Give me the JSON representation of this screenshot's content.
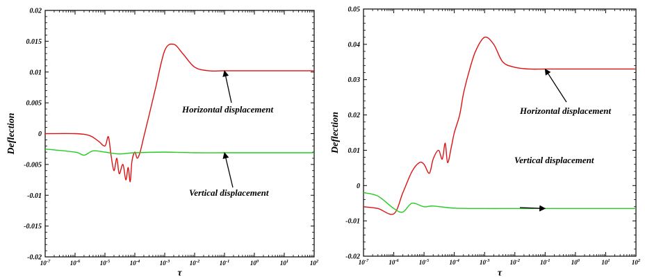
{
  "chart_data": [
    {
      "type": "line",
      "xscale": "log",
      "xlim": [
        "10^-7",
        "10^2"
      ],
      "x_ticks": [
        "10^-7",
        "10^-6",
        "10^-5",
        "10^-4",
        "10^-3",
        "10^-2",
        "10^-1",
        "10^0",
        "10^1",
        "10^2"
      ],
      "ylim": [
        -0.02,
        0.02
      ],
      "y_ticks": [
        "0.02",
        "0.015",
        "0.01",
        "0.005",
        "0",
        "-0.005",
        "-0.01",
        "-0.015",
        "-0.02"
      ],
      "xlabel": "τ",
      "ylabel": "Deflection",
      "colors": {
        "horizontal": "#dd1111",
        "vertical": "#22cc22"
      },
      "annotations": [
        {
          "text": "Horizontal displacement",
          "arrow_to": {
            "x": "10^-1",
            "y": 0.0102
          }
        },
        {
          "text": "Vertical displacement",
          "arrow_to": {
            "x": "10^-1",
            "y": -0.0031
          }
        }
      ],
      "series": [
        {
          "key": "horizontal",
          "x": [
            "10^-7",
            "10^-6",
            "3×10^-6",
            "6×10^-6",
            "10^-5",
            "1.3×10^-5",
            "1.6×10^-5",
            "2×10^-5",
            "2.5×10^-5",
            "3×10^-5",
            "4×10^-5",
            "5×10^-5",
            "6×10^-5",
            "7×10^-5",
            "8×10^-5",
            "10^-4",
            "1.2×10^-4",
            "1.5×10^-4",
            "2×10^-4",
            "3×10^-4",
            "5×10^-4",
            "10^-3",
            "2×10^-3",
            "4×10^-3",
            "10^-2",
            "3×10^-2",
            "10^-1",
            "10^0",
            "10^1",
            "10^2"
          ],
          "y": [
            0.0,
            0.0,
            -0.0003,
            -0.0012,
            -0.002,
            -0.0005,
            -0.0035,
            -0.006,
            -0.004,
            -0.0065,
            -0.005,
            -0.0075,
            -0.0055,
            -0.0078,
            -0.0045,
            -0.003,
            -0.004,
            -0.003,
            -0.0005,
            0.003,
            0.0075,
            0.0135,
            0.0145,
            0.013,
            0.0108,
            0.0102,
            0.0102,
            0.0102,
            0.0102,
            0.0102
          ]
        },
        {
          "key": "vertical",
          "x": [
            "10^-7",
            "10^-6",
            "2×10^-6",
            "4×10^-6",
            "10^-5",
            "3×10^-5",
            "10^-4",
            "10^-3",
            "10^-2",
            "10^-1",
            "10^0",
            "10^1",
            "10^2"
          ],
          "y": [
            -0.0025,
            -0.003,
            -0.0035,
            -0.0028,
            -0.003,
            -0.0033,
            -0.0031,
            -0.003,
            -0.0031,
            -0.0031,
            -0.0031,
            -0.0031,
            -0.0031
          ]
        }
      ]
    },
    {
      "type": "line",
      "xscale": "log",
      "xlim": [
        "10^-7",
        "10^2"
      ],
      "x_ticks": [
        "10^-7",
        "10^-6",
        "10^-5",
        "10^-4",
        "10^-3",
        "10^-2",
        "10^-1",
        "10^0",
        "10^1",
        "10^2"
      ],
      "ylim": [
        -0.02,
        0.05
      ],
      "y_ticks": [
        "0.05",
        "0.04",
        "0.03",
        "0.02",
        "0.01",
        "0",
        "-0.01",
        "-0.02"
      ],
      "xlabel": "τ",
      "ylabel": "Deflection",
      "colors": {
        "horizontal": "#dd1111",
        "vertical": "#22cc22"
      },
      "annotations": [
        {
          "text": "Horizontal displacement",
          "arrow_to": {
            "x": "10^-1",
            "y": 0.033
          }
        },
        {
          "text": "Vertical displacement",
          "arrow_to": {
            "x": "10^-1",
            "y": -0.0065
          }
        }
      ],
      "series": [
        {
          "key": "horizontal",
          "x": [
            "10^-7",
            "3×10^-7",
            "10^-6",
            "2×10^-6",
            "4×10^-6",
            "7×10^-6",
            "10^-5",
            "1.5×10^-5",
            "2×10^-5",
            "3×10^-5",
            "4×10^-5",
            "5×10^-5",
            "6×10^-5",
            "8×10^-5",
            "10^-4",
            "1.5×10^-4",
            "2×10^-4",
            "3×10^-4",
            "5×10^-4",
            "10^-3",
            "2×10^-3",
            "4×10^-3",
            "10^-2",
            "3×10^-2",
            "10^-1",
            "10^0",
            "10^1",
            "10^2"
          ],
          "y": [
            -0.006,
            -0.0065,
            -0.008,
            -0.002,
            0.004,
            0.0065,
            0.006,
            0.0035,
            0.0075,
            0.01,
            0.0075,
            0.012,
            0.0065,
            0.011,
            0.015,
            0.02,
            0.026,
            0.032,
            0.038,
            0.042,
            0.04,
            0.035,
            0.0335,
            0.033,
            0.033,
            0.033,
            0.033,
            0.033
          ]
        },
        {
          "key": "vertical",
          "x": [
            "10^-7",
            "3×10^-7",
            "10^-6",
            "2×10^-6",
            "4×10^-6",
            "10^-5",
            "2×10^-5",
            "10^-4",
            "10^-3",
            "10^-2",
            "10^-1",
            "10^0",
            "10^1",
            "10^2"
          ],
          "y": [
            -0.002,
            -0.003,
            -0.0065,
            -0.0075,
            -0.005,
            -0.006,
            -0.0058,
            -0.0064,
            -0.0065,
            -0.0065,
            -0.0065,
            -0.0065,
            -0.0065,
            -0.0065
          ]
        }
      ]
    }
  ]
}
